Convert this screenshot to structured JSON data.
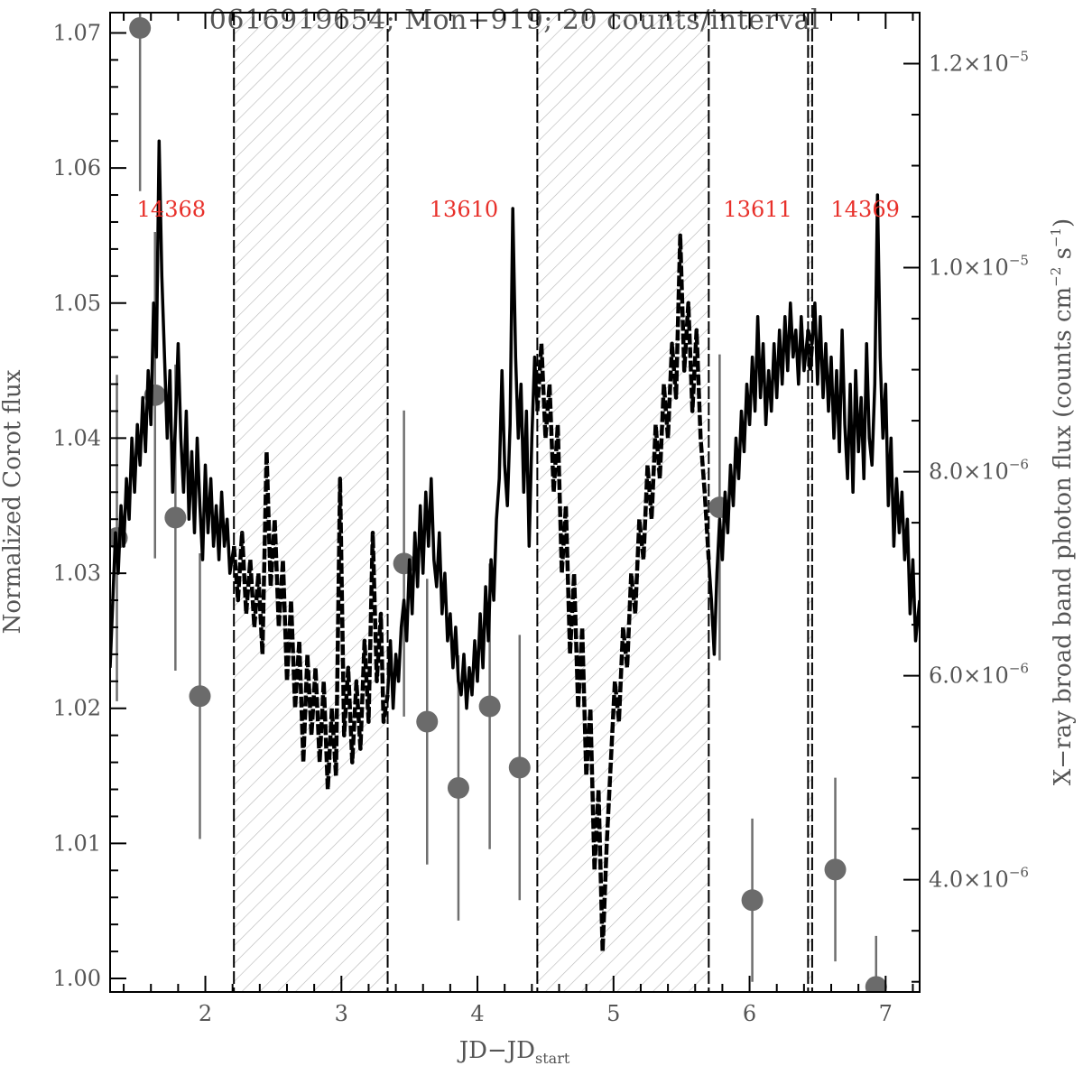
{
  "chart_data": {
    "type": "line",
    "title": "0616919654; Mon−919; 20 counts/interval",
    "xlabel_main": "JD−JD",
    "xlabel_sub": "start",
    "ylabel_left": "Normalized Corot flux",
    "ylabel_right_prefix": "X−ray broad band photon flux (counts cm",
    "ylabel_right_exp1": "−2",
    "ylabel_right_mid": " s",
    "ylabel_right_exp2": "−1",
    "ylabel_right_suffix": ")",
    "xlim": [
      1.3,
      7.25
    ],
    "ylim_left": [
      0.999,
      1.0715
    ],
    "ylim_right": [
      2.9e-06,
      1.25e-05
    ],
    "x_ticks": [
      {
        "value": 2,
        "label": "2"
      },
      {
        "value": 3,
        "label": "3"
      },
      {
        "value": 4,
        "label": "4"
      },
      {
        "value": 5,
        "label": "5"
      },
      {
        "value": 6,
        "label": "6"
      },
      {
        "value": 7,
        "label": "7"
      }
    ],
    "y_left_ticks": [
      {
        "value": 1.0,
        "label": "1.00"
      },
      {
        "value": 1.01,
        "label": "1.01"
      },
      {
        "value": 1.02,
        "label": "1.02"
      },
      {
        "value": 1.03,
        "label": "1.03"
      },
      {
        "value": 1.04,
        "label": "1.04"
      },
      {
        "value": 1.05,
        "label": "1.05"
      },
      {
        "value": 1.06,
        "label": "1.06"
      },
      {
        "value": 1.07,
        "label": "1.07"
      }
    ],
    "y_right_ticks": [
      {
        "value": 4e-06,
        "mant": "4.0",
        "exp": "−6"
      },
      {
        "value": 6e-06,
        "mant": "6.0",
        "exp": "−6"
      },
      {
        "value": 8e-06,
        "mant": "8.0",
        "exp": "−6"
      },
      {
        "value": 1e-05,
        "mant": "1.0",
        "exp": "−5"
      },
      {
        "value": 1.2e-05,
        "mant": "1.2",
        "exp": "−5"
      }
    ],
    "observations": [
      {
        "label": "14368",
        "x": 1.75
      },
      {
        "label": "13610",
        "x": 3.9
      },
      {
        "label": "13611",
        "x": 6.06
      },
      {
        "label": "14369",
        "x": 6.85
      }
    ],
    "window_boundaries": [
      2.21,
      3.34,
      4.44,
      5.7,
      6.43,
      6.46
    ],
    "gap_intervals": [
      [
        2.21,
        3.34
      ],
      [
        4.44,
        5.7
      ],
      [
        6.43,
        6.46
      ]
    ],
    "corot_lightcurve_in": [
      [
        1.3,
        1.023
      ],
      [
        1.32,
        1.028
      ],
      [
        1.34,
        1.033
      ],
      [
        1.36,
        1.03
      ],
      [
        1.38,
        1.035
      ],
      [
        1.4,
        1.032
      ],
      [
        1.42,
        1.037
      ],
      [
        1.44,
        1.034
      ],
      [
        1.46,
        1.04
      ],
      [
        1.48,
        1.036
      ],
      [
        1.5,
        1.041
      ],
      [
        1.52,
        1.038
      ],
      [
        1.54,
        1.043
      ],
      [
        1.56,
        1.039
      ],
      [
        1.58,
        1.045
      ],
      [
        1.6,
        1.041
      ],
      [
        1.62,
        1.05
      ],
      [
        1.64,
        1.046
      ],
      [
        1.66,
        1.062
      ],
      [
        1.68,
        1.052
      ],
      [
        1.7,
        1.046
      ],
      [
        1.72,
        1.04
      ],
      [
        1.74,
        1.045
      ],
      [
        1.76,
        1.036
      ],
      [
        1.78,
        1.041
      ],
      [
        1.8,
        1.047
      ],
      [
        1.82,
        1.04
      ],
      [
        1.84,
        1.036
      ],
      [
        1.86,
        1.042
      ],
      [
        1.88,
        1.034
      ],
      [
        1.9,
        1.039
      ],
      [
        1.92,
        1.033
      ],
      [
        1.94,
        1.04
      ],
      [
        1.96,
        1.035
      ],
      [
        1.98,
        1.031
      ],
      [
        2.0,
        1.038
      ],
      [
        2.02,
        1.033
      ],
      [
        2.04,
        1.037
      ],
      [
        2.06,
        1.032
      ],
      [
        2.08,
        1.035
      ],
      [
        2.1,
        1.031
      ],
      [
        2.12,
        1.036
      ],
      [
        2.14,
        1.032
      ],
      [
        2.16,
        1.034
      ],
      [
        2.18,
        1.03
      ],
      [
        2.21,
        1.032
      ],
      [
        3.34,
        1.021
      ],
      [
        3.36,
        1.025
      ],
      [
        3.38,
        1.02
      ],
      [
        3.4,
        1.024
      ],
      [
        3.42,
        1.022
      ],
      [
        3.44,
        1.026
      ],
      [
        3.46,
        1.028
      ],
      [
        3.48,
        1.025
      ],
      [
        3.5,
        1.031
      ],
      [
        3.52,
        1.027
      ],
      [
        3.54,
        1.033
      ],
      [
        3.56,
        1.029
      ],
      [
        3.58,
        1.035
      ],
      [
        3.6,
        1.03
      ],
      [
        3.62,
        1.036
      ],
      [
        3.64,
        1.032
      ],
      [
        3.66,
        1.037
      ],
      [
        3.68,
        1.031
      ],
      [
        3.7,
        1.029
      ],
      [
        3.72,
        1.033
      ],
      [
        3.74,
        1.027
      ],
      [
        3.76,
        1.03
      ],
      [
        3.78,
        1.025
      ],
      [
        3.8,
        1.027
      ],
      [
        3.82,
        1.023
      ],
      [
        3.84,
        1.026
      ],
      [
        3.86,
        1.022
      ],
      [
        3.88,
        1.021
      ],
      [
        3.9,
        1.024
      ],
      [
        3.92,
        1.02
      ],
      [
        3.94,
        1.023
      ],
      [
        3.96,
        1.021
      ],
      [
        3.98,
        1.025
      ],
      [
        4.0,
        1.022
      ],
      [
        4.02,
        1.027
      ],
      [
        4.04,
        1.023
      ],
      [
        4.06,
        1.029
      ],
      [
        4.08,
        1.025
      ],
      [
        4.1,
        1.031
      ],
      [
        4.12,
        1.028
      ],
      [
        4.14,
        1.034
      ],
      [
        4.16,
        1.037
      ],
      [
        4.18,
        1.045
      ],
      [
        4.2,
        1.038
      ],
      [
        4.22,
        1.035
      ],
      [
        4.24,
        1.041
      ],
      [
        4.26,
        1.057
      ],
      [
        4.28,
        1.046
      ],
      [
        4.3,
        1.04
      ],
      [
        4.32,
        1.044
      ],
      [
        4.34,
        1.036
      ],
      [
        4.36,
        1.042
      ],
      [
        4.38,
        1.032
      ],
      [
        4.4,
        1.04
      ],
      [
        4.42,
        1.046
      ],
      [
        4.44,
        1.042
      ],
      [
        5.7,
        1.031
      ],
      [
        5.72,
        1.028
      ],
      [
        5.74,
        1.024
      ],
      [
        5.76,
        1.03
      ],
      [
        5.78,
        1.034
      ],
      [
        5.8,
        1.031
      ],
      [
        5.82,
        1.036
      ],
      [
        5.84,
        1.033
      ],
      [
        5.86,
        1.038
      ],
      [
        5.88,
        1.035
      ],
      [
        5.9,
        1.04
      ],
      [
        5.92,
        1.037
      ],
      [
        5.94,
        1.042
      ],
      [
        5.96,
        1.039
      ],
      [
        5.98,
        1.044
      ],
      [
        6.0,
        1.041
      ],
      [
        6.02,
        1.046
      ],
      [
        6.04,
        1.042
      ],
      [
        6.06,
        1.049
      ],
      [
        6.08,
        1.043
      ],
      [
        6.1,
        1.047
      ],
      [
        6.12,
        1.041
      ],
      [
        6.14,
        1.045
      ],
      [
        6.16,
        1.042
      ],
      [
        6.18,
        1.047
      ],
      [
        6.2,
        1.043
      ],
      [
        6.22,
        1.048
      ],
      [
        6.24,
        1.044
      ],
      [
        6.26,
        1.049
      ],
      [
        6.28,
        1.045
      ],
      [
        6.3,
        1.05
      ],
      [
        6.32,
        1.046
      ],
      [
        6.34,
        1.048
      ],
      [
        6.36,
        1.044
      ],
      [
        6.38,
        1.049
      ],
      [
        6.4,
        1.045
      ],
      [
        6.43,
        1.048
      ],
      [
        6.46,
        1.047
      ],
      [
        6.48,
        1.05
      ],
      [
        6.5,
        1.044
      ],
      [
        6.52,
        1.049
      ],
      [
        6.54,
        1.043
      ],
      [
        6.56,
        1.047
      ],
      [
        6.58,
        1.042
      ],
      [
        6.6,
        1.046
      ],
      [
        6.62,
        1.04
      ],
      [
        6.64,
        1.045
      ],
      [
        6.66,
        1.039
      ],
      [
        6.68,
        1.048
      ],
      [
        6.7,
        1.041
      ],
      [
        6.72,
        1.037
      ],
      [
        6.74,
        1.044
      ],
      [
        6.76,
        1.036
      ],
      [
        6.78,
        1.045
      ],
      [
        6.8,
        1.039
      ],
      [
        6.82,
        1.043
      ],
      [
        6.84,
        1.037
      ],
      [
        6.86,
        1.047
      ],
      [
        6.88,
        1.04
      ],
      [
        6.9,
        1.038
      ],
      [
        6.92,
        1.044
      ],
      [
        6.94,
        1.058
      ],
      [
        6.96,
        1.046
      ],
      [
        6.98,
        1.04
      ],
      [
        7.0,
        1.044
      ],
      [
        7.02,
        1.035
      ],
      [
        7.04,
        1.04
      ],
      [
        7.06,
        1.032
      ],
      [
        7.08,
        1.037
      ],
      [
        7.1,
        1.033
      ],
      [
        7.12,
        1.036
      ],
      [
        7.14,
        1.031
      ],
      [
        7.16,
        1.034
      ],
      [
        7.18,
        1.027
      ],
      [
        7.2,
        1.031
      ],
      [
        7.22,
        1.025
      ],
      [
        7.25,
        1.028
      ]
    ],
    "corot_lightcurve_gap": [
      [
        2.21,
        1.032
      ],
      [
        2.24,
        1.028
      ],
      [
        2.27,
        1.033
      ],
      [
        2.3,
        1.027
      ],
      [
        2.33,
        1.031
      ],
      [
        2.36,
        1.026
      ],
      [
        2.39,
        1.03
      ],
      [
        2.42,
        1.024
      ],
      [
        2.45,
        1.039
      ],
      [
        2.48,
        1.029
      ],
      [
        2.51,
        1.034
      ],
      [
        2.54,
        1.026
      ],
      [
        2.57,
        1.031
      ],
      [
        2.6,
        1.022
      ],
      [
        2.63,
        1.028
      ],
      [
        2.66,
        1.02
      ],
      [
        2.69,
        1.025
      ],
      [
        2.72,
        1.016
      ],
      [
        2.75,
        1.024
      ],
      [
        2.78,
        1.018
      ],
      [
        2.81,
        1.023
      ],
      [
        2.84,
        1.016
      ],
      [
        2.87,
        1.022
      ],
      [
        2.9,
        1.014
      ],
      [
        2.93,
        1.02
      ],
      [
        2.96,
        1.015
      ],
      [
        2.99,
        1.037
      ],
      [
        3.02,
        1.018
      ],
      [
        3.05,
        1.023
      ],
      [
        3.08,
        1.016
      ],
      [
        3.11,
        1.022
      ],
      [
        3.14,
        1.017
      ],
      [
        3.17,
        1.025
      ],
      [
        3.2,
        1.019
      ],
      [
        3.23,
        1.033
      ],
      [
        3.26,
        1.022
      ],
      [
        3.29,
        1.027
      ],
      [
        3.31,
        1.019
      ],
      [
        3.34,
        1.021
      ],
      [
        4.44,
        1.042
      ],
      [
        4.47,
        1.047
      ],
      [
        4.5,
        1.04
      ],
      [
        4.53,
        1.044
      ],
      [
        4.56,
        1.036
      ],
      [
        4.59,
        1.041
      ],
      [
        4.62,
        1.03
      ],
      [
        4.65,
        1.035
      ],
      [
        4.68,
        1.024
      ],
      [
        4.71,
        1.03
      ],
      [
        4.74,
        1.02
      ],
      [
        4.77,
        1.026
      ],
      [
        4.8,
        1.015
      ],
      [
        4.83,
        1.02
      ],
      [
        4.86,
        1.008
      ],
      [
        4.89,
        1.014
      ],
      [
        4.92,
        1.002
      ],
      [
        4.95,
        1.01
      ],
      [
        4.98,
        1.016
      ],
      [
        5.01,
        1.022
      ],
      [
        5.04,
        1.019
      ],
      [
        5.07,
        1.026
      ],
      [
        5.1,
        1.023
      ],
      [
        5.13,
        1.03
      ],
      [
        5.16,
        1.027
      ],
      [
        5.19,
        1.034
      ],
      [
        5.22,
        1.031
      ],
      [
        5.25,
        1.038
      ],
      [
        5.28,
        1.034
      ],
      [
        5.31,
        1.041
      ],
      [
        5.34,
        1.037
      ],
      [
        5.37,
        1.044
      ],
      [
        5.4,
        1.04
      ],
      [
        5.43,
        1.047
      ],
      [
        5.46,
        1.043
      ],
      [
        5.49,
        1.055
      ],
      [
        5.52,
        1.045
      ],
      [
        5.55,
        1.05
      ],
      [
        5.58,
        1.042
      ],
      [
        5.61,
        1.048
      ],
      [
        5.64,
        1.04
      ],
      [
        5.67,
        1.036
      ],
      [
        5.7,
        1.031
      ],
      [
        6.43,
        1.048
      ],
      [
        6.445,
        1.045
      ],
      [
        6.46,
        1.047
      ]
    ],
    "xray_points": [
      {
        "x": 1.35,
        "y": 7.35e-06,
        "err": 1.6e-06
      },
      {
        "x": 1.52,
        "y": 1.235e-05,
        "err": 1.6e-06
      },
      {
        "x": 1.63,
        "y": 8.75e-06,
        "err": 1.6e-06
      },
      {
        "x": 1.78,
        "y": 7.55e-06,
        "err": 1.5e-06
      },
      {
        "x": 1.96,
        "y": 5.8e-06,
        "err": 1.4e-06
      },
      {
        "x": 3.46,
        "y": 7.1e-06,
        "err": 1.5e-06
      },
      {
        "x": 3.63,
        "y": 5.55e-06,
        "err": 1.4e-06
      },
      {
        "x": 3.86,
        "y": 4.9e-06,
        "err": 1.3e-06
      },
      {
        "x": 4.09,
        "y": 5.7e-06,
        "err": 1.4e-06
      },
      {
        "x": 4.31,
        "y": 5.1e-06,
        "err": 1.3e-06
      },
      {
        "x": 5.78,
        "y": 7.65e-06,
        "err": 1.5e-06
      },
      {
        "x": 6.02,
        "y": 3.8e-06,
        "err": 8e-07
      },
      {
        "x": 6.63,
        "y": 4.1e-06,
        "err": 9e-07
      },
      {
        "x": 6.93,
        "y": 2.95e-06,
        "err": 5e-07
      }
    ]
  }
}
